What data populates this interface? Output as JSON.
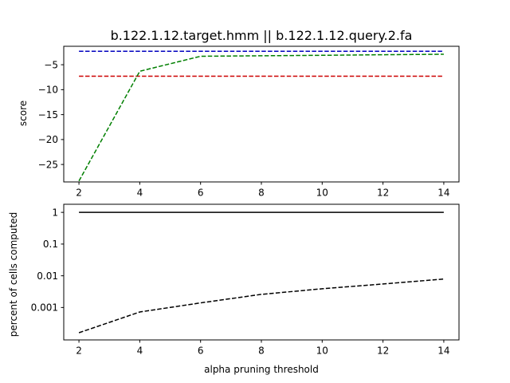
{
  "chart_data": [
    {
      "type": "line",
      "title": "b.122.1.12.target.hmm || b.122.1.12.query.2.fa",
      "xlabel": "",
      "ylabel": "score",
      "xlim": [
        1.5,
        14.5
      ],
      "ylim": [
        -28.5,
        -1.3
      ],
      "x_ticks": [
        2,
        4,
        6,
        8,
        10,
        12,
        14
      ],
      "x_tick_labels": [
        "2",
        "4",
        "6",
        "8",
        "10",
        "12",
        "14"
      ],
      "y_ticks": [
        -25,
        -20,
        -15,
        -10,
        -5
      ],
      "y_tick_labels": [
        "−25",
        "−20",
        "−15",
        "−10",
        "−5"
      ],
      "grid": false,
      "series": [
        {
          "color": "#0000bf",
          "style": "dashed",
          "x": [
            2,
            4,
            6,
            8,
            10,
            12,
            14
          ],
          "values": [
            -2.3,
            -2.3,
            -2.3,
            -2.3,
            -2.3,
            -2.3,
            -2.3
          ]
        },
        {
          "color": "#cc0000",
          "style": "dashed",
          "x": [
            2,
            4,
            6,
            8,
            10,
            12,
            14
          ],
          "values": [
            -7.3,
            -7.3,
            -7.3,
            -7.3,
            -7.3,
            -7.3,
            -7.3
          ]
        },
        {
          "color": "#007f00",
          "style": "dashed",
          "x": [
            2,
            4,
            6,
            8,
            10,
            12,
            14
          ],
          "values": [
            -28.3,
            -6.3,
            -3.3,
            -3.2,
            -3.1,
            -3.0,
            -2.9
          ]
        }
      ]
    },
    {
      "type": "line",
      "title": "",
      "xlabel": "alpha pruning threshold",
      "ylabel": "percent of cells computed",
      "y_scale": "log",
      "xlim": [
        1.5,
        14.5
      ],
      "ylim": [
        9.5e-05,
        1.8
      ],
      "x_ticks": [
        2,
        4,
        6,
        8,
        10,
        12,
        14
      ],
      "x_tick_labels": [
        "2",
        "4",
        "6",
        "8",
        "10",
        "12",
        "14"
      ],
      "y_ticks": [
        0.001,
        0.01,
        0.1,
        1
      ],
      "y_tick_labels": [
        "0.001",
        "0.01",
        "0.1",
        "1"
      ],
      "grid": false,
      "series": [
        {
          "color": "#000000",
          "style": "solid",
          "x": [
            2,
            4,
            6,
            8,
            10,
            12,
            14
          ],
          "values": [
            1,
            1,
            1,
            1,
            1,
            1,
            1
          ]
        },
        {
          "color": "#000000",
          "style": "dashed",
          "x": [
            2,
            4,
            6,
            8,
            10,
            12,
            14
          ],
          "values": [
            0.00016,
            0.00072,
            0.0014,
            0.0026,
            0.0039,
            0.0055,
            0.0079
          ]
        }
      ]
    }
  ]
}
